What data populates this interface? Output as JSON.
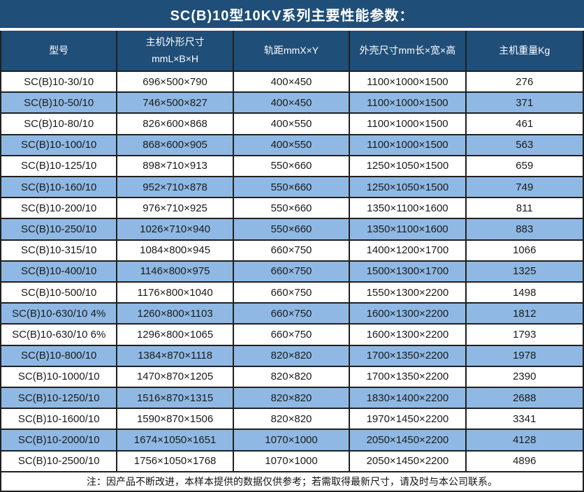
{
  "title": "SC(B)10型10KV系列主要性能参数：",
  "table": {
    "headers": [
      "型号",
      "主机外形尺寸\nmmL×B×H",
      "轨距mmX×Y",
      "外壳尺寸mm长×宽×高",
      "主机重量Kg"
    ],
    "rows": [
      [
        "SC(B)10-30/10",
        "696×500×790",
        "400×450",
        "1100×1000×1500",
        "276"
      ],
      [
        "SC(B)10-50/10",
        "746×500×827",
        "400×450",
        "1100×1000×1500",
        "371"
      ],
      [
        "SC(B)10-80/10",
        "826×600×868",
        "400×550",
        "1100×1000×1500",
        "461"
      ],
      [
        "SC(B)10-100/10",
        "868×600×905",
        "400×550",
        "1100×1000×1500",
        "563"
      ],
      [
        "SC(B)10-125/10",
        "898×710×913",
        "550×660",
        "1250×1050×1500",
        "659"
      ],
      [
        "SC(B)10-160/10",
        "952×710×878",
        "550×660",
        "1250×1050×1500",
        "749"
      ],
      [
        "SC(B)10-200/10",
        "976×710×925",
        "550×660",
        "1350×1100×1600",
        "811"
      ],
      [
        "SC(B)10-250/10",
        "1026×710×940",
        "550×660",
        "1350×1100×1600",
        "883"
      ],
      [
        "SC(B)10-315/10",
        "1084×800×945",
        "660×750",
        "1400×1200×1700",
        "1066"
      ],
      [
        "SC(B)10-400/10",
        "1146×800×975",
        "660×750",
        "1500×1300×1700",
        "1325"
      ],
      [
        "SC(B)10-500/10",
        "1176×800×1040",
        "660×750",
        "1550×1300×2200",
        "1498"
      ],
      [
        "SC(B)10-630/10 4%",
        "1260×800×1103",
        "660×750",
        "1600×1300×2200",
        "1812"
      ],
      [
        "SC(B)10-630/10 6%",
        "1296×800×1065",
        "660×750",
        "1600×1300×2200",
        "1793"
      ],
      [
        "SC(B)10-800/10",
        "1384×870×1118",
        "820×820",
        "1700×1350×2200",
        "1978"
      ],
      [
        "SC(B)10-1000/10",
        "1470×870×1205",
        "820×820",
        "1700×1350×2200",
        "2390"
      ],
      [
        "SC(B)10-1250/10",
        "1516×870×1315",
        "820×820",
        "1830×1400×2200",
        "2688"
      ],
      [
        "SC(B)10-1600/10",
        "1590×870×1506",
        "820×820",
        "1970×1450×2200",
        "3341"
      ],
      [
        "SC(B)10-2000/10",
        "1674×1050×1651",
        "1070×1000",
        "2050×1450×2200",
        "4128"
      ],
      [
        "SC(B)10-2500/10",
        "1756×1050×1768",
        "1070×1000",
        "2050×1450×2200",
        "4896"
      ]
    ]
  },
  "footnote": "注：因产品不断改进，本样本提供的数据仅供参考；若需取得最新尺寸，请及时与本公司联系。",
  "colors": {
    "header_bg": "#1F4E79",
    "header_text": "#FFFFFF",
    "row_bg": "#FFFFFF",
    "row_alt_bg": "#8FB9E4",
    "body_text": "#1A1A1A",
    "border": "#1F1F1F"
  }
}
